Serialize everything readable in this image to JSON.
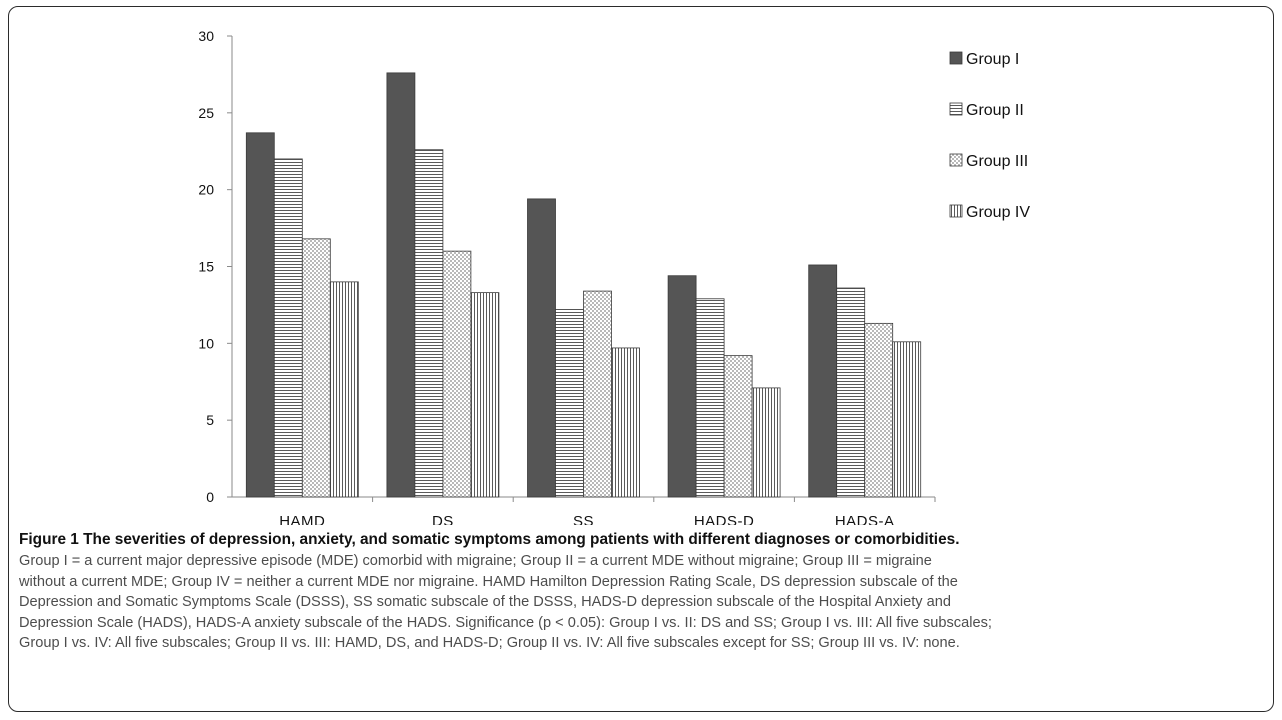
{
  "chart_data": {
    "type": "bar",
    "categories": [
      "HAMD",
      "DS",
      "SS",
      "HADS-D",
      "HADS-A"
    ],
    "series": [
      {
        "name": "Group I",
        "values": [
          23.7,
          27.6,
          19.4,
          14.4,
          15.1
        ],
        "pattern": "solid"
      },
      {
        "name": "Group II",
        "values": [
          22.0,
          22.6,
          12.2,
          12.9,
          13.6
        ],
        "pattern": "horizontal-lines"
      },
      {
        "name": "Group III",
        "values": [
          16.8,
          16.0,
          13.4,
          9.2,
          11.3
        ],
        "pattern": "crosshatch"
      },
      {
        "name": "Group IV",
        "values": [
          14.0,
          13.3,
          9.7,
          7.1,
          10.1
        ],
        "pattern": "vertical-lines"
      }
    ],
    "ylim": [
      0,
      30
    ],
    "yticks": [
      "0",
      "5",
      "10",
      "15",
      "20",
      "25",
      "30"
    ],
    "grid": false,
    "legend": "right",
    "colors": {
      "bar_dark": "#555555",
      "bar_outline": "#3a3a3a",
      "axis": "#8a8a8a"
    }
  },
  "caption": {
    "title": "Figure 1 The severities of depression, anxiety, and somatic symptoms among patients with different diagnoses or comorbidities.",
    "line1": "Group I = a current major depressive episode (MDE) comorbid with migraine; Group II = a current MDE without migraine; Group III = migraine",
    "line2": "without a current MDE; Group IV = neither a current MDE nor migraine. HAMD Hamilton Depression Rating Scale, DS depression subscale of the",
    "line3": "Depression and Somatic Symptoms Scale (DSSS), SS somatic subscale of the DSSS, HADS-D depression subscale of the Hospital Anxiety and",
    "line4": "Depression Scale (HADS), HADS-A anxiety subscale of the HADS. Significance (p < 0.05): Group I vs. II: DS and SS; Group I vs. III: All five subscales;",
    "line5": "Group I vs. IV: All five subscales; Group II vs. III: HAMD, DS, and HADS-D; Group II vs. IV: All five subscales except for SS; Group III vs. IV: none."
  }
}
